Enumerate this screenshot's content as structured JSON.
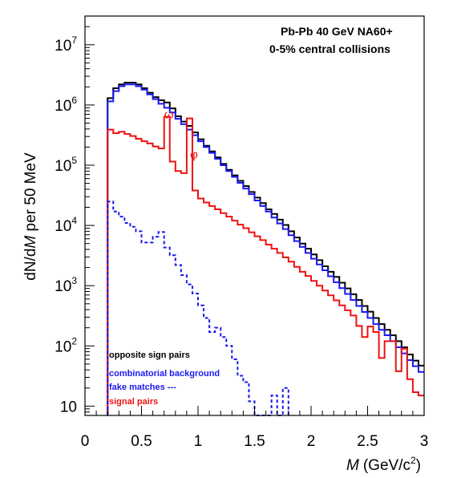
{
  "chart_data": {
    "type": "line",
    "annotation_lines": [
      "Pb-Pb 40 GeV NA60+",
      "0-5% central collisions"
    ],
    "xlabel_italic": "M",
    "xlabel_units": "(GeV/c",
    "xlabel_sup": "2",
    "xlabel_close": ")",
    "ylabel_prefix": "dN/d",
    "ylabel_italic": "M",
    "ylabel_suffix": " per 50 MeV",
    "xlim": [
      0,
      3
    ],
    "ylim": [
      7,
      30000000
    ],
    "yscale": "log",
    "x_ticks": [
      0,
      0.5,
      1,
      1.5,
      2,
      2.5,
      3
    ],
    "x_tick_labels": [
      "0",
      "0.5",
      "1",
      "1.5",
      "2",
      "2.5",
      "3"
    ],
    "y_ticks": [
      10,
      100,
      1000,
      10000,
      100000,
      1000000,
      10000000
    ],
    "y_tick_labels": [
      {
        "base": "10",
        "exp": ""
      },
      {
        "base": "10",
        "exp": "2"
      },
      {
        "base": "10",
        "exp": "3"
      },
      {
        "base": "10",
        "exp": "4"
      },
      {
        "base": "10",
        "exp": "5"
      },
      {
        "base": "10",
        "exp": "6"
      },
      {
        "base": "10",
        "exp": "7"
      }
    ],
    "bin_width": 0.05,
    "peak_labels": [
      {
        "text": "ω",
        "x": 0.7,
        "y": 600000
      },
      {
        "text": "φ",
        "x": 0.93,
        "y": 130000
      }
    ],
    "legend": {
      "placement": "bottom-left",
      "entries": [
        {
          "label": "opposite sign pairs",
          "color": "#000000"
        },
        {
          "label": "combinatorial background",
          "color": "#1a1aee"
        },
        {
          "label": "fake matches ---",
          "color": "#1a1aee"
        },
        {
          "label": "signal pairs",
          "color": "#ee1111"
        }
      ]
    },
    "series": [
      {
        "key": "opposite-sign",
        "color": "#000000",
        "dashed": false,
        "x_start": 0.2,
        "values": [
          1300000,
          1900000,
          2200000,
          2350000,
          2350000,
          2200000,
          1900000,
          1600000,
          1350000,
          1200000,
          1100000,
          880000,
          650000,
          530000,
          450000,
          350000,
          270000,
          210000,
          170000,
          135000,
          105000,
          84000,
          68000,
          55000,
          45000,
          36000,
          29000,
          23500,
          18500,
          15500,
          12500,
          10200,
          8000,
          6300,
          5000,
          4100,
          3300,
          2650,
          2100,
          1700,
          1400,
          1120,
          900,
          720,
          580,
          460,
          370,
          290,
          230,
          185,
          150,
          120,
          95,
          72,
          57,
          47
        ]
      },
      {
        "key": "combinatorial",
        "color": "#1a1aee",
        "dashed": false,
        "x_start": 0.2,
        "values": [
          1150000,
          1700000,
          2050000,
          2200000,
          2200000,
          2050000,
          1800000,
          1500000,
          1250000,
          1050000,
          900000,
          750000,
          590000,
          480000,
          390000,
          315000,
          250000,
          200000,
          160000,
          128000,
          100000,
          80000,
          64000,
          51000,
          41000,
          33000,
          26000,
          21000,
          17000,
          13500,
          10800,
          8700,
          6900,
          5500,
          4400,
          3500,
          2800,
          2250,
          1800,
          1430,
          1140,
          910,
          730,
          580,
          460,
          365,
          290,
          230,
          185,
          150,
          120,
          95,
          75,
          58,
          46,
          37
        ]
      },
      {
        "key": "signal",
        "color": "#ee1111",
        "dashed": false,
        "x_start": 0.2,
        "values": [
          390000,
          340000,
          360000,
          330000,
          305000,
          275000,
          250000,
          230000,
          205000,
          190000,
          640000,
          115000,
          80000,
          74000,
          600000,
          38000,
          28000,
          24000,
          21000,
          18500,
          16000,
          14000,
          12000,
          10300,
          9000,
          7700,
          6600,
          5700,
          4800,
          4100,
          3500,
          2950,
          2500,
          2050,
          1700,
          1450,
          1200,
          1000,
          830,
          690,
          570,
          470,
          390,
          320,
          215,
          140,
          210,
          170,
          63,
          120,
          120,
          38,
          90,
          28,
          17,
          15
        ]
      },
      {
        "key": "fake-matches",
        "color": "#1a1aee",
        "dashed": true,
        "x_start": 0.2,
        "values": [
          25000,
          17000,
          14000,
          11000,
          9500,
          8000,
          5200,
          5200,
          6500,
          7800,
          4300,
          3200,
          2200,
          1500,
          1050,
          740,
          470,
          290,
          170,
          200,
          140,
          100,
          60,
          32,
          25,
          12,
          6,
          6,
          4,
          15,
          3,
          20
        ]
      }
    ]
  }
}
